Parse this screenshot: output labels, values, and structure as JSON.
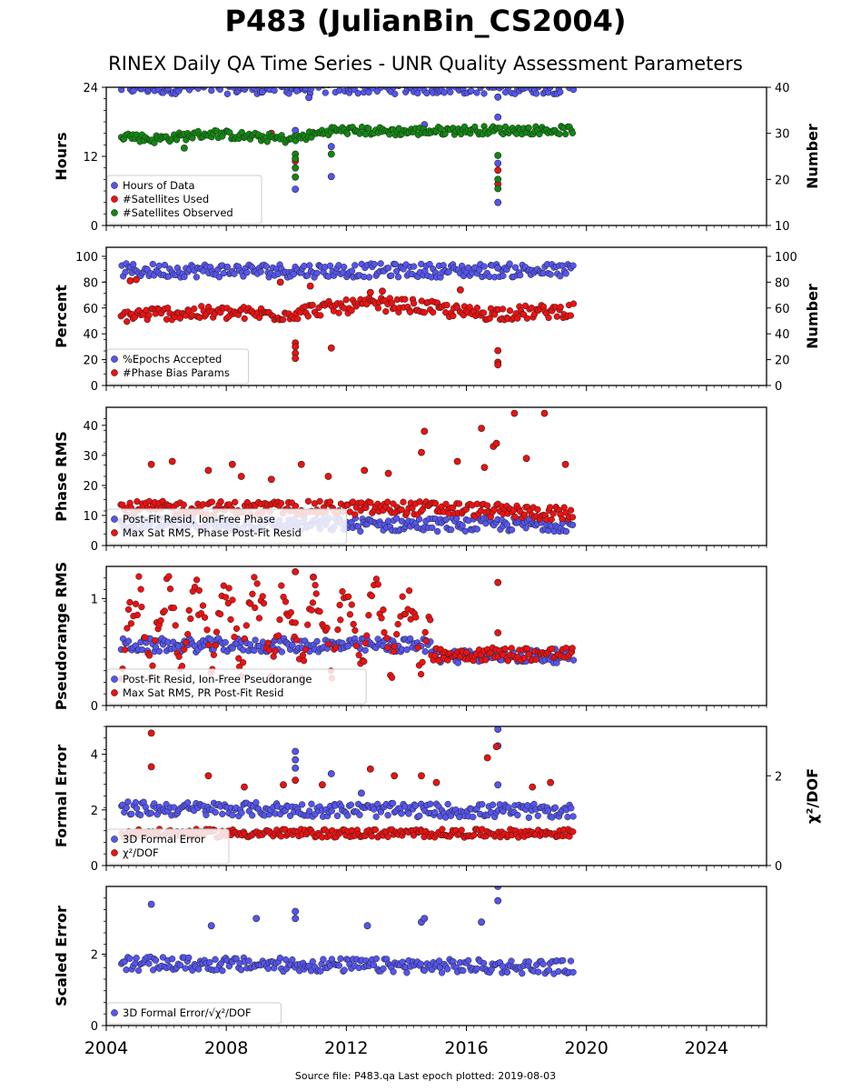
{
  "title": "P483 (JulianBin_CS2004)",
  "subtitle": "RINEX Daily QA Time Series - UNR Quality Assessment Parameters",
  "footer": "Source file: P483.qa Last epoch plotted: 2019-08-03",
  "colors": {
    "blue": "#5555ee",
    "red": "#ee1111",
    "green": "#118811"
  },
  "chart_data": [
    {
      "type": "scatter",
      "ylabel": "Hours",
      "y2label": "Number",
      "xlim": [
        2004,
        2026
      ],
      "ylim": [
        0,
        24
      ],
      "y2lim": [
        10,
        40
      ],
      "yticks": [
        "0",
        "12",
        "24"
      ],
      "y2ticks": [
        "10",
        "20",
        "30",
        "40"
      ],
      "legend_position": "lower-left",
      "series": [
        {
          "name": "Hours of Data",
          "axis": "left",
          "color": "#5555ee",
          "baseline": [
            [
              2004.5,
              23.8
            ],
            [
              2019.5,
              23.8
            ]
          ],
          "outliers": [
            [
              2009.2,
              23.2
            ],
            [
              2010.35,
              23.4
            ],
            [
              2010.75,
              22.2
            ],
            [
              2010.3,
              16.5
            ],
            [
              2010.3,
              6.3
            ],
            [
              2011.5,
              13.7
            ],
            [
              2011.5,
              8.5
            ],
            [
              2014.6,
              17.5
            ],
            [
              2017.05,
              22.3
            ],
            [
              2017.05,
              18.8
            ],
            [
              2017.05,
              10.8
            ],
            [
              2017.05,
              4.0
            ]
          ]
        },
        {
          "name": "#Satellites Used",
          "axis": "right",
          "color": "#ee1111",
          "baseline": [],
          "outliers": [
            [
              2005.2,
              29.5
            ],
            [
              2009.5,
              30.0
            ],
            [
              2010.3,
              24.0
            ],
            [
              2017.05,
              22.0
            ],
            [
              2017.05,
              19.0
            ]
          ]
        },
        {
          "name": "#Satellites Observed",
          "axis": "right",
          "color": "#118811",
          "baseline": [
            [
              2004.5,
              29.5
            ],
            [
              2005.5,
              28.5
            ],
            [
              2007.5,
              29.8
            ],
            [
              2009.0,
              29.0
            ],
            [
              2010.2,
              28.5
            ],
            [
              2011.5,
              30.5
            ],
            [
              2014.0,
              30.2
            ],
            [
              2016.0,
              30.5
            ],
            [
              2017.5,
              30.5
            ],
            [
              2019.5,
              30.5
            ]
          ],
          "outliers": [
            [
              2006.6,
              26.8
            ],
            [
              2010.3,
              25.5
            ],
            [
              2010.3,
              24.5
            ],
            [
              2010.3,
              22.5
            ],
            [
              2010.3,
              20.5
            ],
            [
              2011.5,
              25.5
            ],
            [
              2017.05,
              25.2
            ],
            [
              2017.05,
              20.0
            ],
            [
              2017.05,
              18.0
            ]
          ]
        }
      ]
    },
    {
      "type": "scatter",
      "ylabel": "Percent",
      "y2label": "Number",
      "xlim": [
        2004,
        2026
      ],
      "ylim": [
        0,
        107
      ],
      "yticks": [
        "0",
        "20",
        "40",
        "60",
        "80",
        "100"
      ],
      "y2ticks": [
        "0",
        "20",
        "40",
        "60",
        "80",
        "100"
      ],
      "legend_position": "lower-left",
      "series": [
        {
          "name": "%Epochs Accepted",
          "axis": "left",
          "color": "#5555ee",
          "baseline": [
            [
              2004.5,
              88
            ],
            [
              2019.5,
              88
            ]
          ],
          "outliers": [
            [
              2017.05,
              91
            ]
          ]
        },
        {
          "name": "#Phase Bias Params",
          "axis": "right",
          "color": "#ee1111",
          "baseline": [
            [
              2004.5,
              53
            ],
            [
              2006.0,
              55
            ],
            [
              2008.0,
              55
            ],
            [
              2010.0,
              54
            ],
            [
              2011.0,
              58
            ],
            [
              2013.0,
              62
            ],
            [
              2014.5,
              60
            ],
            [
              2016.0,
              55
            ],
            [
              2017.5,
              55
            ],
            [
              2019.5,
              57
            ]
          ],
          "outliers": [
            [
              2004.8,
              81
            ],
            [
              2005.0,
              82
            ],
            [
              2010.3,
              33
            ],
            [
              2010.3,
              30
            ],
            [
              2010.3,
              25
            ],
            [
              2010.3,
              21
            ],
            [
              2011.5,
              29
            ],
            [
              2017.05,
              27
            ],
            [
              2017.05,
              18
            ],
            [
              2017.05,
              16
            ],
            [
              2015.8,
              74
            ],
            [
              2009.8,
              80
            ],
            [
              2010.8,
              77
            ],
            [
              2012.8,
              72
            ],
            [
              2013.2,
              73
            ]
          ]
        }
      ]
    },
    {
      "type": "scatter",
      "ylabel": "Phase RMS",
      "xlim": [
        2004,
        2026
      ],
      "ylim": [
        0,
        46
      ],
      "yticks": [
        "0",
        "10",
        "20",
        "30",
        "40"
      ],
      "legend_position": "lower-left",
      "series": [
        {
          "name": "Post-Fit Resid, Ion-Free Phase",
          "axis": "left",
          "color": "#5555ee",
          "baseline": [
            [
              2004.5,
              6.5
            ],
            [
              2019.5,
              6.5
            ]
          ],
          "outliers": []
        },
        {
          "name": "Max Sat RMS, Phase Post-Fit Resid",
          "axis": "left",
          "color": "#ee1111",
          "baseline": [
            [
              2004.5,
              12
            ],
            [
              2015.0,
              12
            ],
            [
              2019.5,
              10
            ]
          ],
          "outliers": [
            [
              2005.5,
              27
            ],
            [
              2006.2,
              28
            ],
            [
              2007.4,
              25
            ],
            [
              2008.2,
              27
            ],
            [
              2008.5,
              23
            ],
            [
              2009.5,
              22
            ],
            [
              2010.5,
              27
            ],
            [
              2011.4,
              23
            ],
            [
              2012.6,
              25
            ],
            [
              2013.4,
              24
            ],
            [
              2014.5,
              31
            ],
            [
              2014.6,
              38
            ],
            [
              2015.7,
              28
            ],
            [
              2016.5,
              39
            ],
            [
              2016.6,
              26
            ],
            [
              2016.9,
              33
            ],
            [
              2017.0,
              34
            ],
            [
              2017.6,
              44
            ],
            [
              2018.0,
              29
            ],
            [
              2018.6,
              44
            ],
            [
              2019.3,
              27
            ]
          ]
        }
      ]
    },
    {
      "type": "scatter",
      "ylabel": "Pseudorange RMS",
      "xlim": [
        2004,
        2026
      ],
      "ylim": [
        0,
        1.3
      ],
      "yticks": [
        "0",
        "1"
      ],
      "legend_position": "lower-left",
      "series": [
        {
          "name": "Post-Fit Resid, Ion-Free Pseudorange",
          "axis": "left",
          "color": "#5555ee",
          "baseline": [
            [
              2004.5,
              0.55
            ],
            [
              2014.8,
              0.55
            ],
            [
              2015.0,
              0.45
            ],
            [
              2019.5,
              0.45
            ]
          ],
          "outliers": []
        },
        {
          "name": "Max Sat RMS, PR Post-Fit Resid",
          "axis": "left",
          "color": "#ee1111",
          "seasonal": {
            "start": 2004.5,
            "end": 2014.8,
            "period": 1.0,
            "min": 0.3,
            "max": 1.2
          },
          "baseline": [
            [
              2014.8,
              0.47
            ],
            [
              2019.5,
              0.47
            ]
          ],
          "outliers": [
            [
              2010.3,
              1.25
            ],
            [
              2010.9,
              1.2
            ],
            [
              2017.05,
              1.15
            ],
            [
              2017.05,
              0.68
            ]
          ]
        }
      ]
    },
    {
      "type": "scatter",
      "ylabel": "Formal Error",
      "y2label": "χ²/DOF",
      "xlim": [
        2004,
        2026
      ],
      "ylim": [
        0,
        5
      ],
      "y2lim": [
        0,
        3.1
      ],
      "yticks": [
        "0",
        "2",
        "4"
      ],
      "y2ticks": [
        "0",
        "2"
      ],
      "legend_position": "lower-left",
      "series": [
        {
          "name": "3D Formal Error",
          "axis": "left",
          "color": "#5555ee",
          "baseline": [
            [
              2004.5,
              2.0
            ],
            [
              2019.5,
              1.9
            ]
          ],
          "outliers": [
            [
              2010.3,
              4.1
            ],
            [
              2010.3,
              3.8
            ],
            [
              2010.3,
              3.5
            ],
            [
              2011.5,
              3.3
            ],
            [
              2012.5,
              2.6
            ],
            [
              2017.05,
              4.9
            ],
            [
              2017.05,
              4.3
            ],
            [
              2017.05,
              2.9
            ]
          ]
        },
        {
          "name": "χ²/DOF",
          "axis": "right",
          "color": "#ee1111",
          "baseline": [
            [
              2004.5,
              0.7
            ],
            [
              2019.5,
              0.7
            ]
          ],
          "outliers": [
            [
              2005.5,
              2.95
            ],
            [
              2005.5,
              2.2
            ],
            [
              2007.4,
              2.0
            ],
            [
              2008.6,
              1.75
            ],
            [
              2009.9,
              1.8
            ],
            [
              2010.3,
              1.9
            ],
            [
              2011.2,
              1.8
            ],
            [
              2012.8,
              2.15
            ],
            [
              2013.6,
              2.0
            ],
            [
              2014.5,
              2.0
            ],
            [
              2015.0,
              1.85
            ],
            [
              2016.7,
              2.4
            ],
            [
              2017.0,
              2.65
            ],
            [
              2018.2,
              1.75
            ],
            [
              2018.8,
              1.85
            ]
          ]
        }
      ]
    },
    {
      "type": "scatter",
      "ylabel": "Scaled Error",
      "xlabel": "",
      "xlim": [
        2004,
        2026
      ],
      "ylim": [
        0,
        3.9
      ],
      "yticks": [
        "0",
        "2"
      ],
      "xticks": [
        "2004",
        "2008",
        "2012",
        "2016",
        "2020",
        "2024"
      ],
      "legend_position": "lower-left",
      "series": [
        {
          "name": "3D Formal Error/√χ²/DOF",
          "axis": "left",
          "color": "#5555ee",
          "baseline": [
            [
              2004.5,
              1.7
            ],
            [
              2019.5,
              1.6
            ]
          ],
          "outliers": [
            [
              2005.5,
              3.4
            ],
            [
              2007.5,
              2.8
            ],
            [
              2009.0,
              3.0
            ],
            [
              2010.3,
              3.2
            ],
            [
              2010.3,
              3.0
            ],
            [
              2012.7,
              2.8
            ],
            [
              2014.5,
              2.9
            ],
            [
              2014.6,
              3.0
            ],
            [
              2016.5,
              2.9
            ],
            [
              2017.05,
              3.9
            ],
            [
              2017.05,
              3.5
            ]
          ]
        }
      ]
    }
  ]
}
